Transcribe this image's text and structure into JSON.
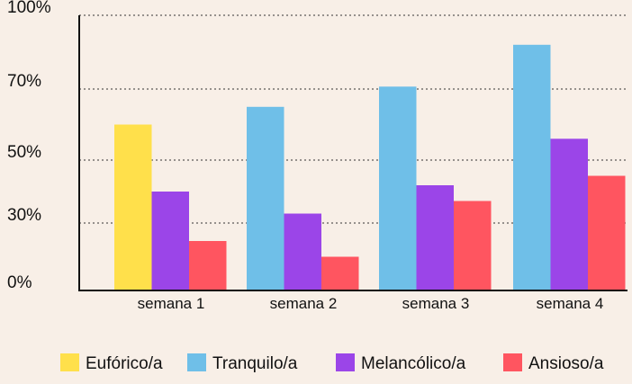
{
  "chart_data": {
    "type": "bar",
    "categories": [
      "semana 1",
      "semana 2",
      "semana 3",
      "semana 4"
    ],
    "series": [
      {
        "name": "Eufórico/a",
        "color": "#ffe04b",
        "values": [
          60,
          null,
          null,
          null
        ]
      },
      {
        "name": "Tranquilo/a",
        "color": "#6fbfe8",
        "values": [
          null,
          65,
          71,
          88
        ]
      },
      {
        "name": "Melancólico/a",
        "color": "#9b45e8",
        "values": [
          40,
          33,
          42,
          56
        ]
      },
      {
        "name": "Ansioso/a",
        "color": "#ff5560",
        "values": [
          22,
          15,
          37,
          45
        ]
      }
    ],
    "yticks": [
      {
        "value": 0,
        "label": "0%"
      },
      {
        "value": 30,
        "label": "30%"
      },
      {
        "value": 50,
        "label": "50%"
      },
      {
        "value": 70,
        "label": "70%"
      },
      {
        "value": 100,
        "label": "100%"
      }
    ],
    "title": "",
    "xlabel": "",
    "ylabel": "",
    "grid": "horizontal-dotted",
    "legend_position": "bottom"
  }
}
